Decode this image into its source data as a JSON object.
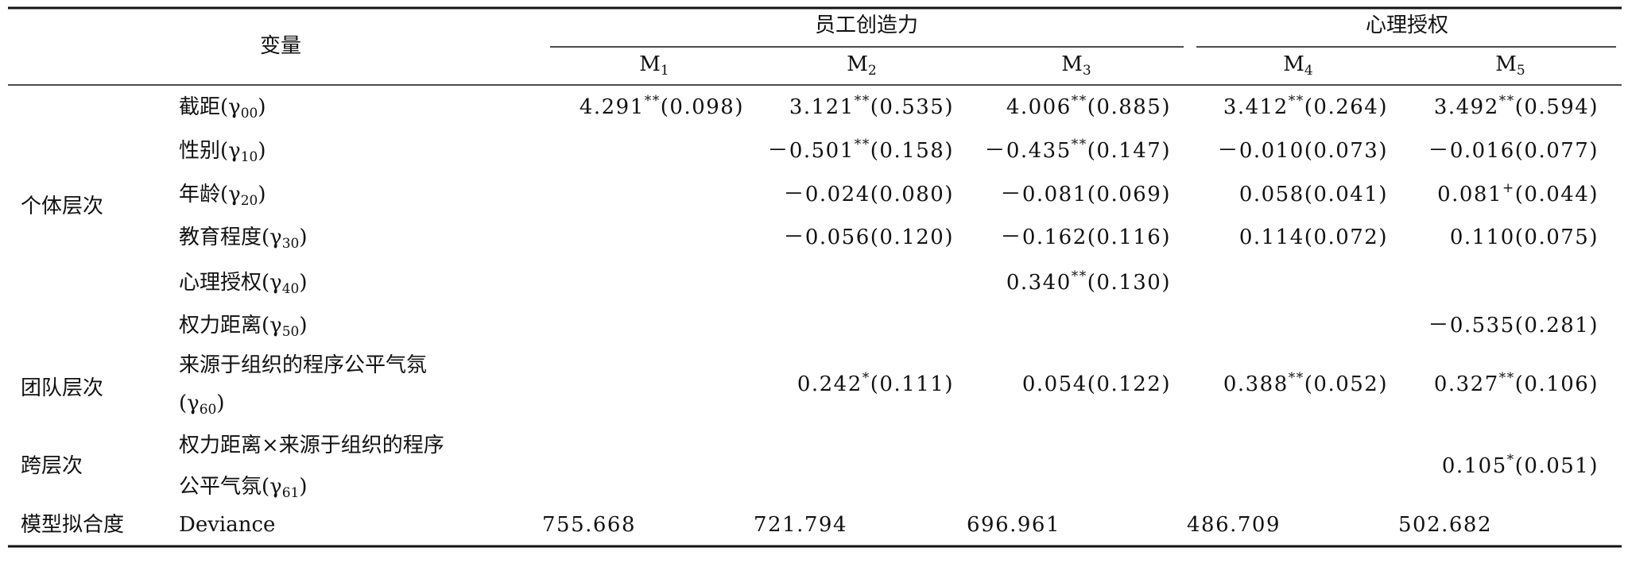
{
  "header": {
    "variable": "变量",
    "groups": [
      {
        "label": "员工创造力"
      },
      {
        "label": "心理授权"
      }
    ],
    "models": [
      {
        "name": "M",
        "sub": "1"
      },
      {
        "name": "M",
        "sub": "2"
      },
      {
        "name": "M",
        "sub": "3"
      },
      {
        "name": "M",
        "sub": "4"
      },
      {
        "name": "M",
        "sub": "5"
      }
    ]
  },
  "groups": [
    {
      "label": "个体层次",
      "rows": [
        {
          "variable": [
            {
              "text": "截距(γ",
              "sub": "00",
              "post": ")"
            }
          ],
          "cells": [
            {
              "est": "4.291",
              "sig": "**",
              "se": "(0.098)"
            },
            {
              "est": "3.121",
              "sig": "**",
              "se": "(0.535)"
            },
            {
              "est": "4.006",
              "sig": "**",
              "se": "(0.885)"
            },
            {
              "est": "3.412",
              "sig": "**",
              "se": "(0.264)"
            },
            {
              "est": "3.492",
              "sig": "**",
              "se": "(0.594)"
            }
          ]
        },
        {
          "variable": [
            {
              "text": "性别(γ",
              "sub": "10",
              "post": ")"
            }
          ],
          "cells": [
            null,
            {
              "est": "－0.501",
              "sig": "**",
              "se": "(0.158)"
            },
            {
              "est": "－0.435",
              "sig": "**",
              "se": "(0.147)"
            },
            {
              "est": "－0.010",
              "se": "(0.073)"
            },
            {
              "est": "－0.016",
              "se": "(0.077)"
            }
          ]
        },
        {
          "variable": [
            {
              "text": "年龄(γ",
              "sub": "20",
              "post": ")"
            }
          ],
          "cells": [
            null,
            {
              "est": "－0.024",
              "se": "(0.080)"
            },
            {
              "est": "－0.081",
              "se": "(0.069)"
            },
            {
              "est": "0.058",
              "se": "(0.041)"
            },
            {
              "est": "0.081",
              "sig": "+",
              "se": "(0.044)"
            }
          ]
        },
        {
          "variable": [
            {
              "text": "教育程度(γ",
              "sub": "30",
              "post": ")"
            }
          ],
          "cells": [
            null,
            {
              "est": "－0.056",
              "se": "(0.120)"
            },
            {
              "est": "－0.162",
              "se": "(0.116)"
            },
            {
              "est": "0.114",
              "se": "(0.072)"
            },
            {
              "est": "0.110",
              "se": "(0.075)"
            }
          ]
        },
        {
          "variable": [
            {
              "text": "心理授权(γ",
              "sub": "40",
              "post": ")"
            }
          ],
          "cells": [
            null,
            null,
            {
              "est": "0.340",
              "sig": "**",
              "se": "(0.130)"
            },
            null,
            null
          ]
        },
        {
          "variable": [
            {
              "text": "权力距离(γ",
              "sub": "50",
              "post": ")"
            }
          ],
          "cells": [
            null,
            null,
            null,
            null,
            {
              "est": "－0.535",
              "se": "(0.281)"
            }
          ]
        }
      ]
    },
    {
      "label": "团队层次",
      "rows": [
        {
          "variable": [
            {
              "text": "来源于组织的程序公平气氛"
            },
            {
              "text": "(γ",
              "sub": "60",
              "post": ")"
            }
          ],
          "cells": [
            null,
            {
              "est": "0.242",
              "sig": "*",
              "se": "(0.111)"
            },
            {
              "est": "0.054",
              "se": "(0.122)"
            },
            {
              "est": "0.388",
              "sig": "**",
              "se": "(0.052)"
            },
            {
              "est": "0.327",
              "sig": "**",
              "se": "(0.106)"
            }
          ]
        }
      ]
    },
    {
      "label": "跨层次",
      "rows": [
        {
          "variable": [
            {
              "text": "权力距离×来源于组织的程序"
            },
            {
              "text": "公平气氛(γ",
              "sub": "61",
              "post": ")"
            }
          ],
          "cells": [
            null,
            null,
            null,
            null,
            {
              "est": "0.105",
              "sig": "*",
              "se": "(0.051)"
            }
          ]
        }
      ]
    },
    {
      "label": "模型拟合度",
      "rows": [
        {
          "variable": [
            {
              "text": "Deviance"
            }
          ],
          "cells": [
            {
              "est": "755.668"
            },
            {
              "est": "721.794"
            },
            {
              "est": "696.961"
            },
            {
              "est": "486.709"
            },
            {
              "est": "502.682"
            }
          ]
        }
      ]
    }
  ]
}
